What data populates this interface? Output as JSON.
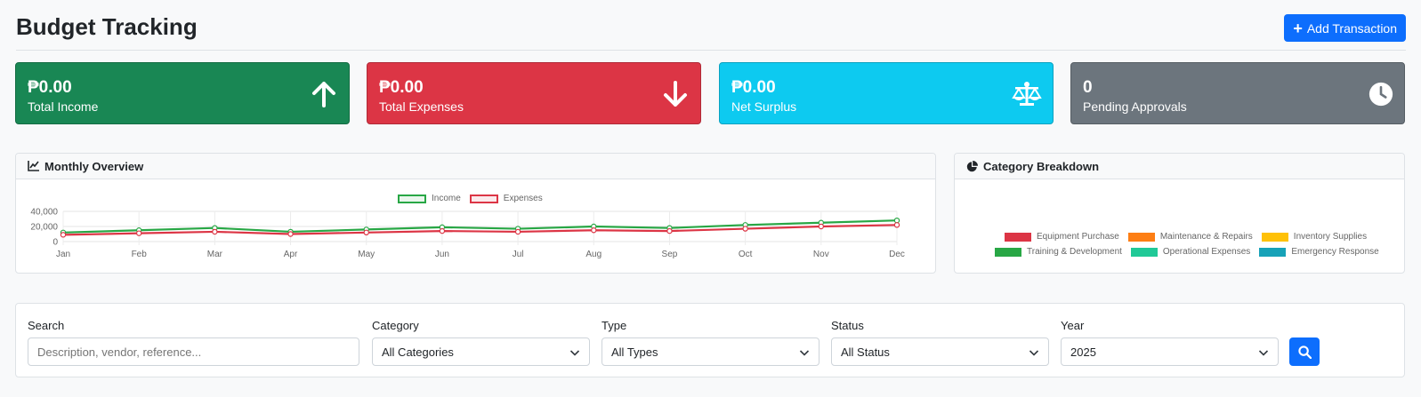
{
  "header": {
    "title": "Budget Tracking",
    "add_label": "Add Transaction"
  },
  "stats": [
    {
      "value": "₱0.00",
      "label": "Total Income",
      "icon": "arrow-up-icon",
      "color": "#198754"
    },
    {
      "value": "₱0.00",
      "label": "Total Expenses",
      "icon": "arrow-down-icon",
      "color": "#dc3545"
    },
    {
      "value": "₱0.00",
      "label": "Net Surplus",
      "icon": "balance-scale-icon",
      "color": "#0dcaf0"
    },
    {
      "value": "0",
      "label": "Pending Approvals",
      "icon": "clock-icon",
      "color": "#6c757d"
    }
  ],
  "monthly": {
    "title": "Monthly Overview",
    "icon": "line-chart-icon"
  },
  "breakdown": {
    "title": "Category Breakdown",
    "icon": "pie-chart-icon",
    "legend": [
      {
        "name": "Equipment Purchase",
        "color": "#dc3545"
      },
      {
        "name": "Maintenance & Repairs",
        "color": "#fd7e14"
      },
      {
        "name": "Inventory Supplies",
        "color": "#ffc107"
      },
      {
        "name": "Training & Development",
        "color": "#28a745"
      },
      {
        "name": "Operational Expenses",
        "color": "#20c997"
      },
      {
        "name": "Emergency Response",
        "color": "#17a2b8"
      }
    ]
  },
  "chart_data": {
    "type": "line",
    "categories": [
      "Jan",
      "Feb",
      "Mar",
      "Apr",
      "May",
      "Jun",
      "Jul",
      "Aug",
      "Sep",
      "Oct",
      "Nov",
      "Dec"
    ],
    "series": [
      {
        "name": "Income",
        "color": "#28a745",
        "values": [
          12000,
          15000,
          18000,
          13000,
          16000,
          19000,
          17000,
          20000,
          18000,
          22000,
          25000,
          28000
        ]
      },
      {
        "name": "Expenses",
        "color": "#dc3545",
        "values": [
          9000,
          11000,
          13000,
          10000,
          12000,
          14000,
          13000,
          15000,
          14000,
          17000,
          20000,
          22000
        ]
      }
    ],
    "yticks": [
      "0",
      "20,000",
      "40,000"
    ],
    "ylim": [
      0,
      40000
    ]
  },
  "filters": {
    "search": {
      "label": "Search",
      "placeholder": "Description, vendor, reference..."
    },
    "category": {
      "label": "Category",
      "value": "All Categories"
    },
    "type": {
      "label": "Type",
      "value": "All Types"
    },
    "status": {
      "label": "Status",
      "value": "All Status"
    },
    "year": {
      "label": "Year",
      "value": "2025"
    }
  }
}
